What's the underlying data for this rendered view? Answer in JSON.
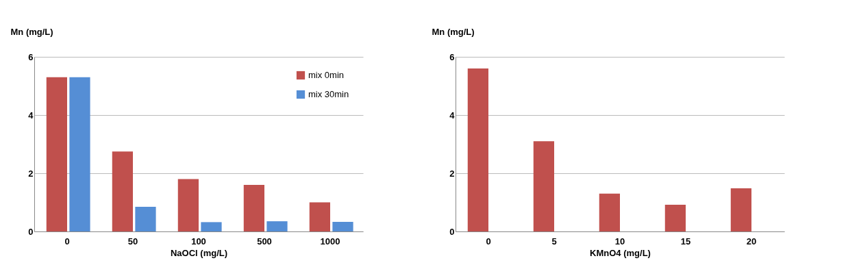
{
  "chart_data": [
    {
      "type": "bar",
      "xlabel": "NaOCl (mg/L)",
      "ylabel": "Mn (mg/L)",
      "categories": [
        "0",
        "50",
        "100",
        "500",
        "1000"
      ],
      "ylim": [
        0,
        6
      ],
      "yticks": [
        0,
        2,
        4,
        6
      ],
      "grid": "y",
      "legend": "top right",
      "series": [
        {
          "name": "mix  0min",
          "color": "#c0504d",
          "values": [
            5.3,
            2.75,
            1.8,
            1.6,
            1.0
          ]
        },
        {
          "name": "mix 30min",
          "color": "#558ed5",
          "values": [
            5.3,
            0.85,
            0.32,
            0.35,
            0.33
          ]
        }
      ]
    },
    {
      "type": "bar",
      "xlabel": "KMnO4 (mg/L)",
      "ylabel": "Mn (mg/L)",
      "categories": [
        "0",
        "5",
        "10",
        "15",
        "20"
      ],
      "ylim": [
        0,
        6
      ],
      "yticks": [
        0,
        2,
        4,
        6
      ],
      "grid": "y",
      "series": [
        {
          "color": "#c0504d",
          "values": [
            5.6,
            3.1,
            1.3,
            0.92,
            1.48
          ]
        }
      ]
    }
  ]
}
